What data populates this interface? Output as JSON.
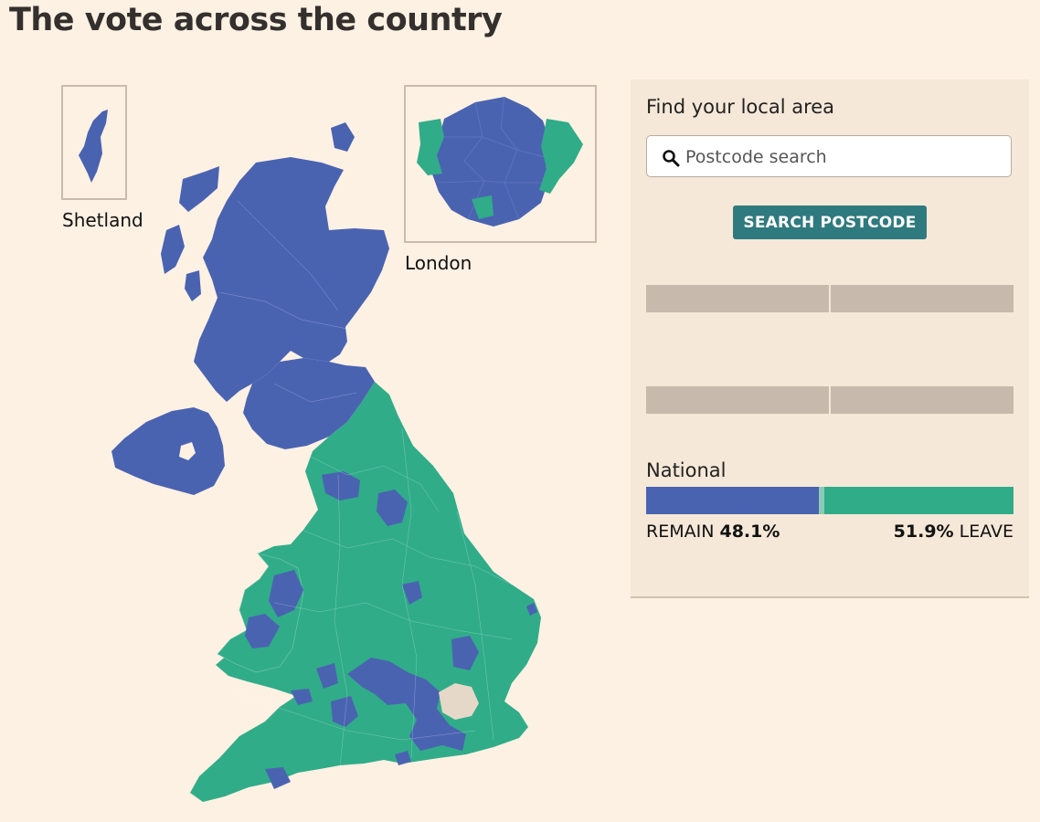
{
  "title": "The vote across the country",
  "insets": {
    "shetland_label": "Shetland",
    "london_label": "London"
  },
  "colors": {
    "remain": "#4a63b1",
    "leave": "#30ac89",
    "no_data": "#e6d8c8",
    "background": "#fdf1e3",
    "panel": "#f6e8d8",
    "button": "#2f7a7e",
    "placeholder_bar": "#c7b9ab"
  },
  "panel": {
    "find_label": "Find your local area",
    "search_placeholder": "Postcode search",
    "search_value": "",
    "search_button": "SEARCH POSTCODE",
    "national_label": "National",
    "remain_label": "REMAIN",
    "remain_pct": "48.1%",
    "leave_pct": "51.9%",
    "leave_label": "LEAVE"
  },
  "national_result": {
    "remain": 48.1,
    "leave": 51.9
  },
  "icons": {
    "search": "search-icon"
  }
}
